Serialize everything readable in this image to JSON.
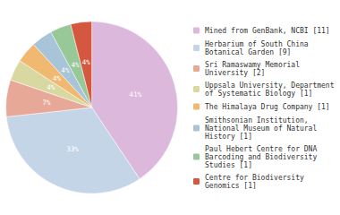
{
  "chart_data": {
    "type": "pie",
    "categories": [
      "Mined from GenBank, NCBI [11]",
      "Herbarium of South China\nBotanical Garden [9]",
      "Sri Ramaswamy Memorial\nUniversity [2]",
      "Uppsala University, Department\nof Systematic Biology [1]",
      "The Himalaya Drug Company [1]",
      "Smithsonian Institution,\nNational Museum of Natural\nHistory [1]",
      "Paul Hebert Centre for DNA\nBarcoding and Biodiversity\nStudies [1]",
      "Centre for Biodiversity\nGenomics [1]"
    ],
    "values": [
      41,
      33,
      7,
      4,
      4,
      4,
      4,
      4
    ],
    "value_labels": [
      "41%",
      "33%",
      "7%",
      "4%",
      "4%",
      "4%",
      "4%",
      "4%"
    ],
    "colors": [
      "#ddb8dd",
      "#c5d5e8",
      "#e8a898",
      "#d8d8a0",
      "#f0b870",
      "#a8c4d8",
      "#98c898",
      "#d45840"
    ],
    "data_labels": true,
    "legend": "right"
  }
}
